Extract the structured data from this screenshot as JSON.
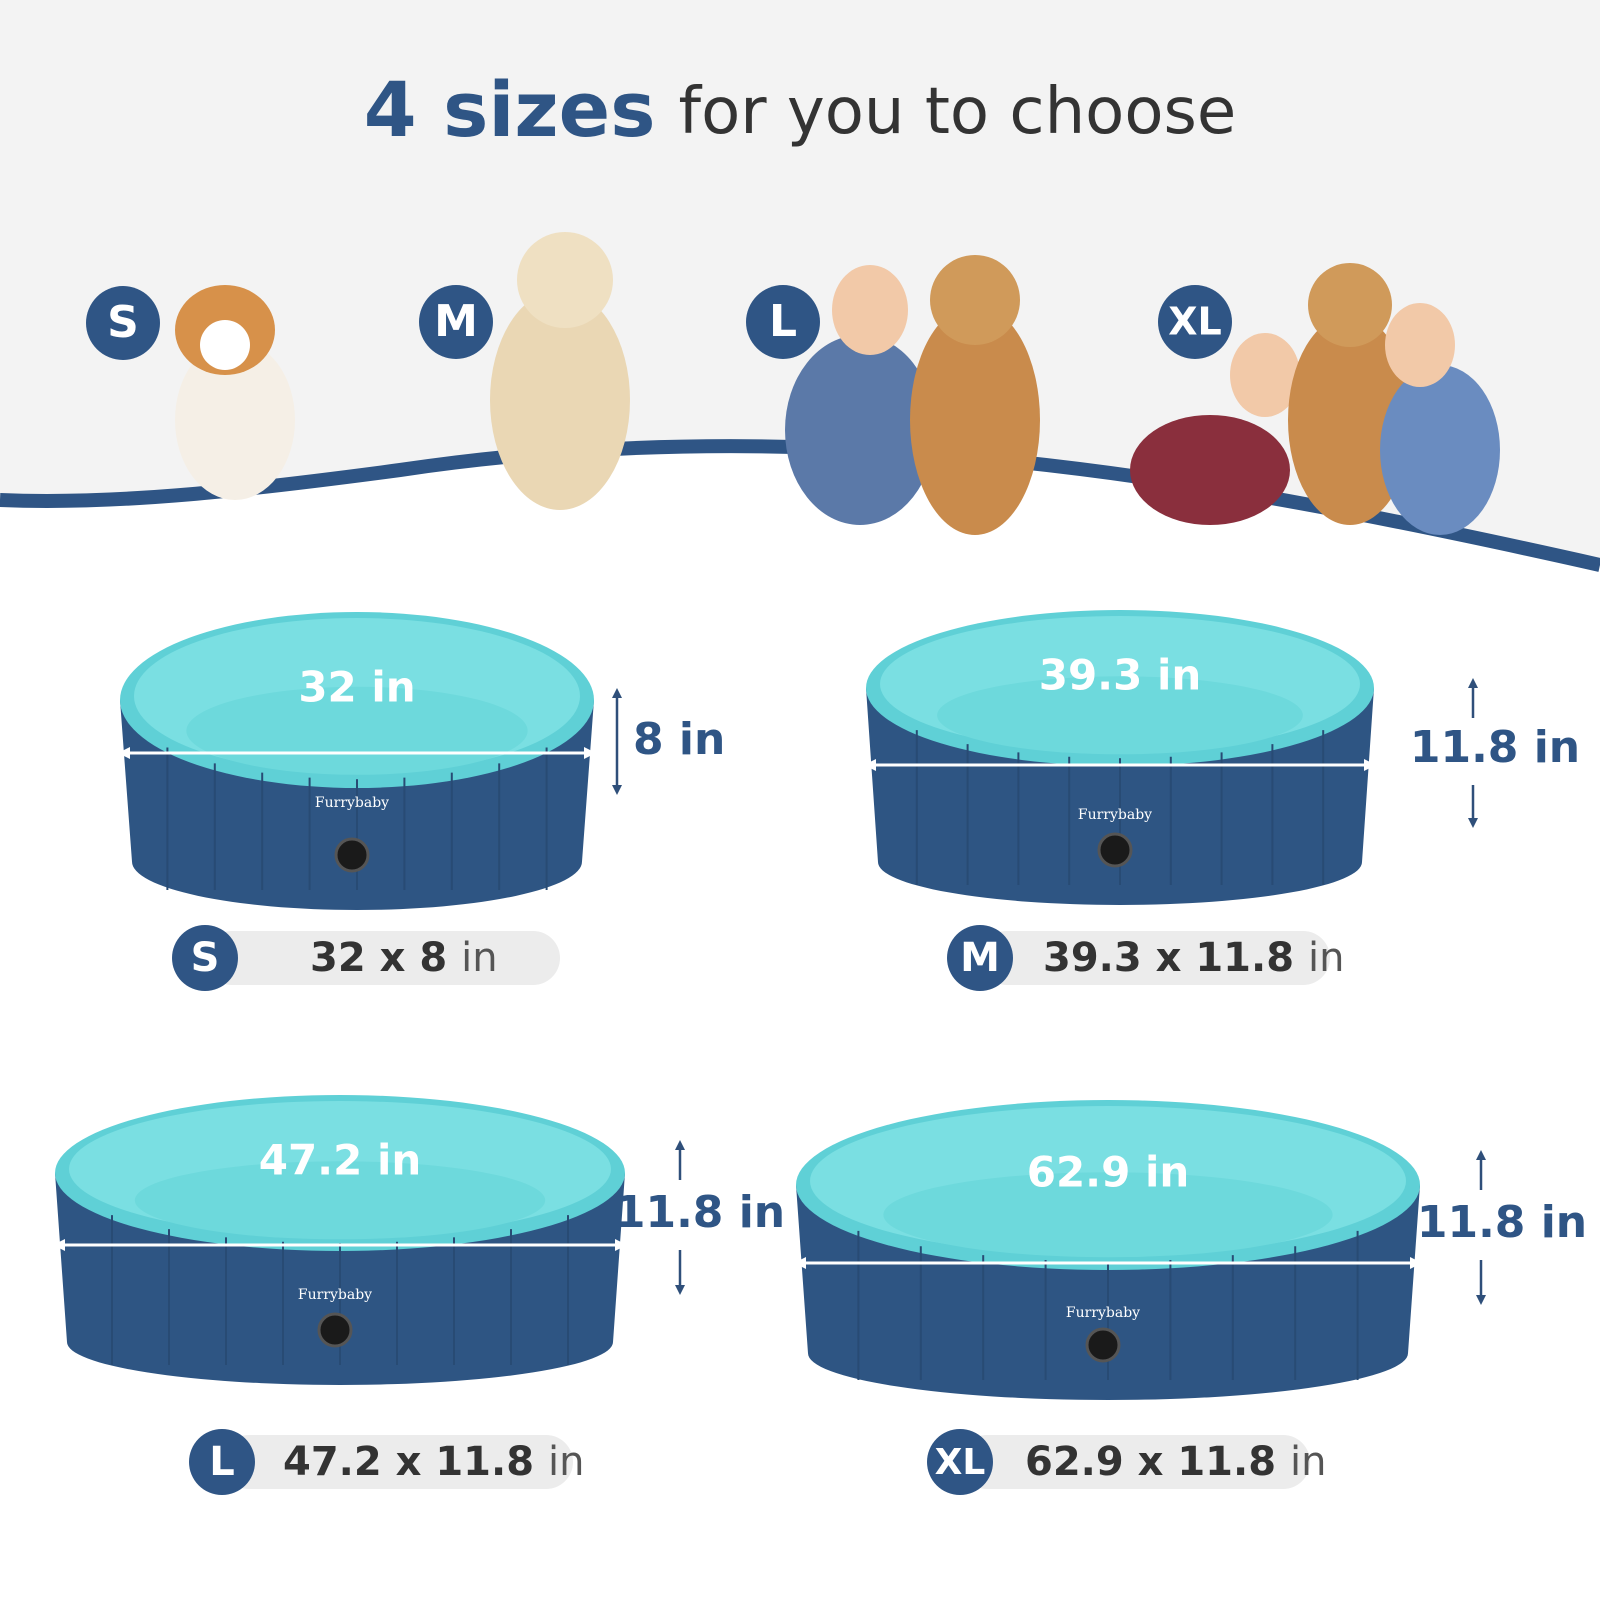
{
  "header": {
    "title_bold": "4 sizes",
    "title_rest": "for you to choose"
  },
  "pools": [
    {
      "badge": "S",
      "diameter": "32 in",
      "height": "8 in",
      "brand": "Furrybaby",
      "spec": "32 x 8",
      "unit": "in"
    },
    {
      "badge": "M",
      "diameter": "39.3 in",
      "height": "11.8 in",
      "brand": "Furrybaby",
      "spec": "39.3 x 11.8",
      "unit": "in"
    },
    {
      "badge": "L",
      "diameter": "47.2 in",
      "height": "11.8 in",
      "brand": "Furrybaby",
      "spec": "47.2 x 11.8",
      "unit": "in"
    },
    {
      "badge": "XL",
      "diameter": "62.9 in",
      "height": "11.8 in",
      "brand": "Furrybaby",
      "spec": "62.9 x 11.8",
      "unit": "in"
    }
  ]
}
